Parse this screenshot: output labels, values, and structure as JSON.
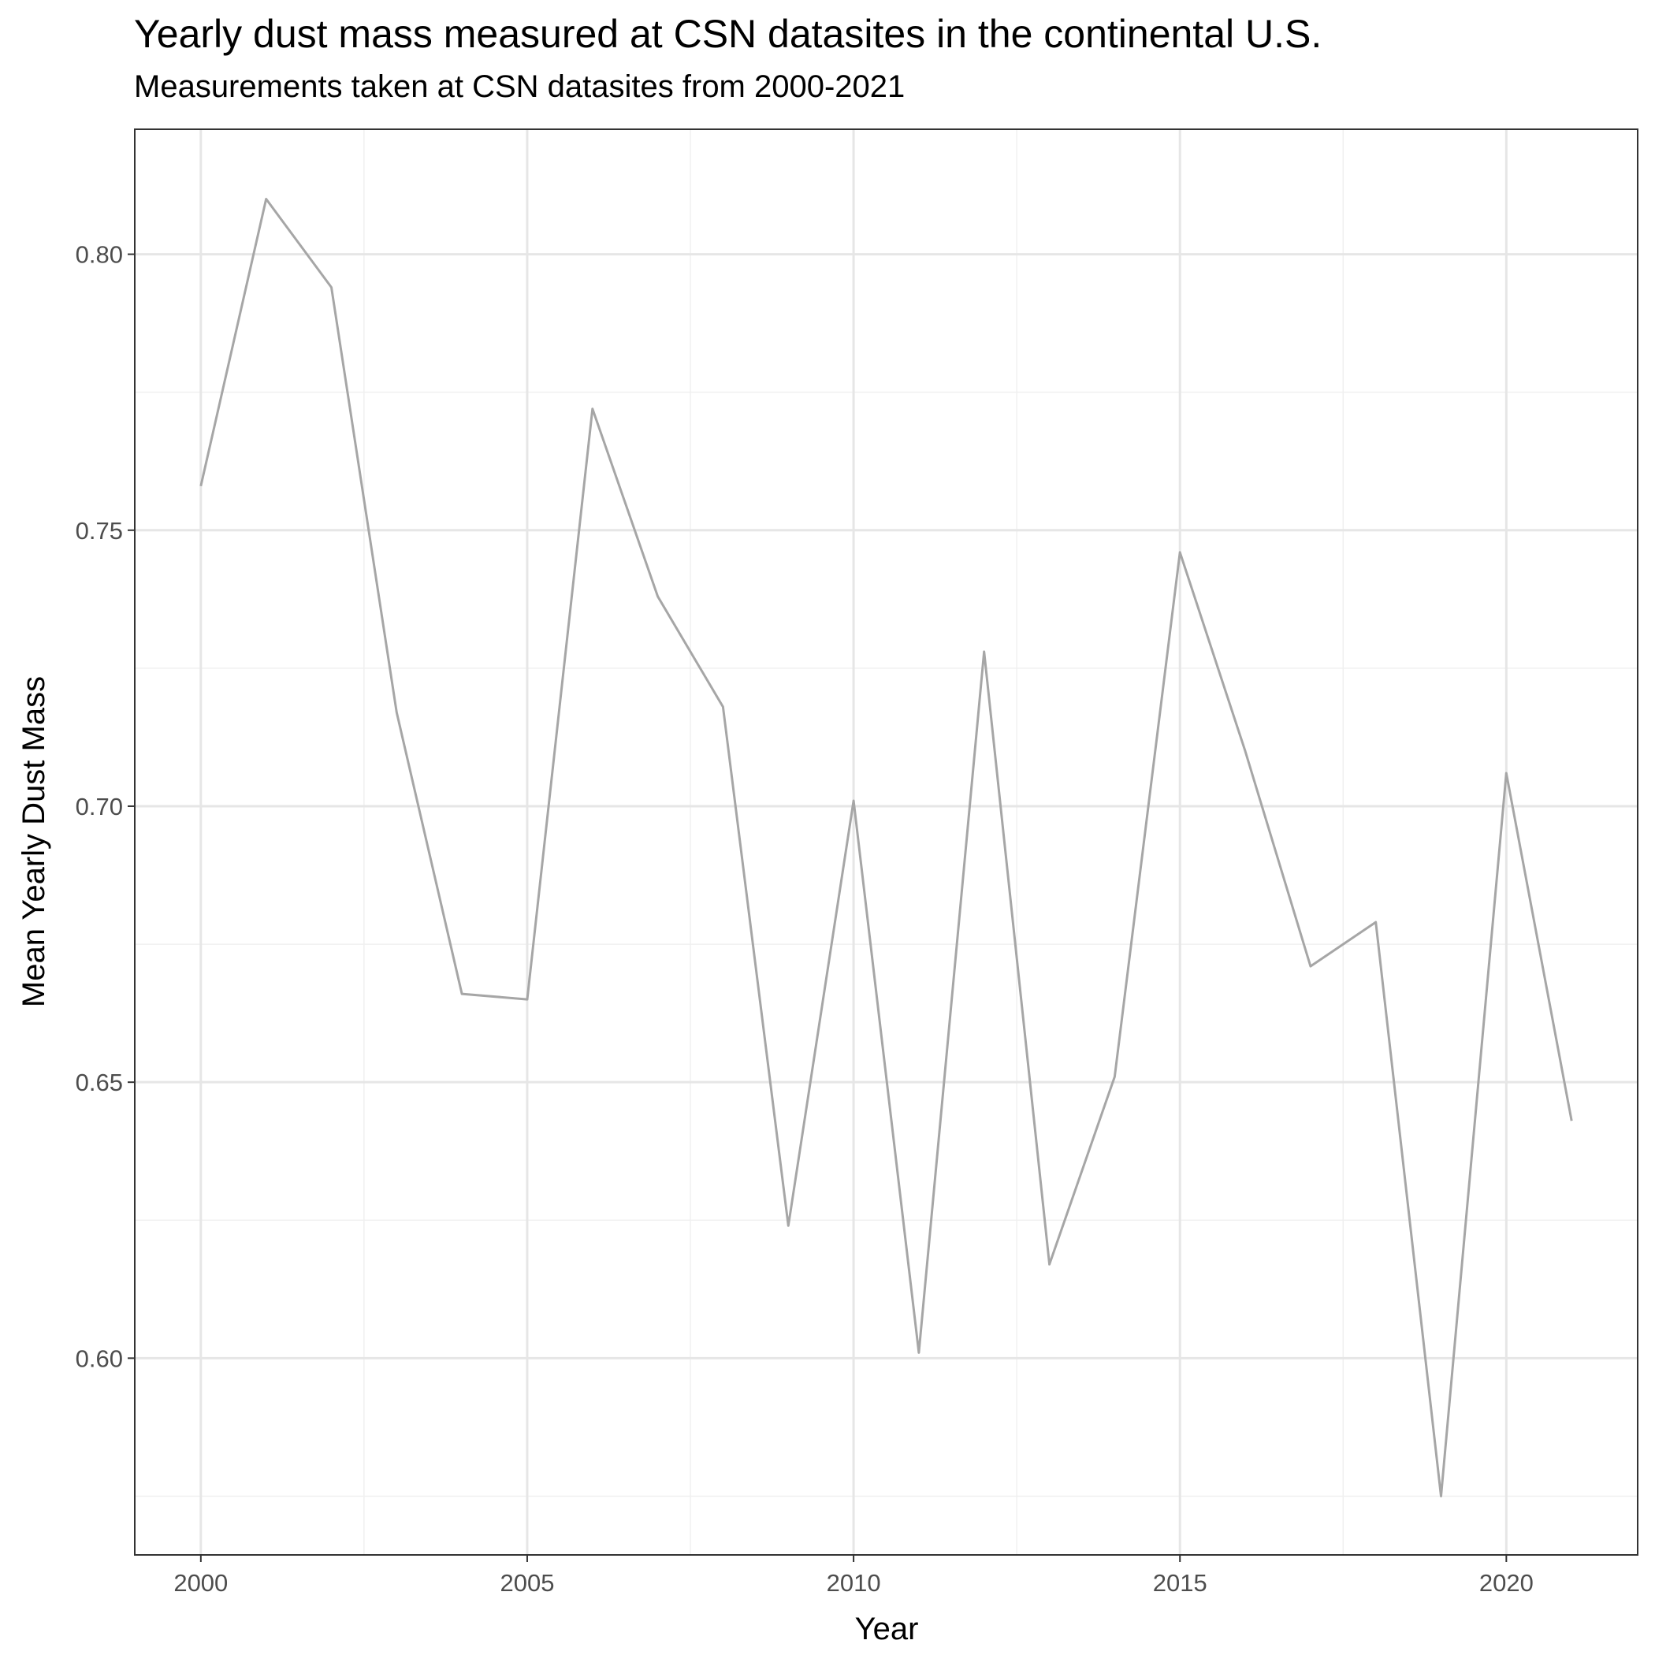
{
  "chart_data": {
    "type": "line",
    "title": "Yearly dust mass measured at CSN datasites in the continental U.S.",
    "subtitle": "Measurements taken at CSN datasites from 2000-2021",
    "xlabel": "Year",
    "ylabel": "Mean Yearly Dust Mass",
    "xlim": [
      1999,
      2022
    ],
    "ylim": [
      0.5645,
      0.8225
    ],
    "x_ticks": [
      2000,
      2005,
      2010,
      2015,
      2020
    ],
    "x_tick_labels": [
      "2000",
      "2005",
      "2010",
      "2015",
      "2020"
    ],
    "y_ticks": [
      0.6,
      0.65,
      0.7,
      0.75,
      0.8
    ],
    "y_tick_labels": [
      "0.60",
      "0.65",
      "0.70",
      "0.75",
      "0.80"
    ],
    "grid": true,
    "line_color": "#a6a6a6",
    "series": [
      {
        "x": [
          2000,
          2001,
          2002,
          2003,
          2004,
          2005,
          2006,
          2007,
          2008,
          2009,
          2010,
          2011,
          2012,
          2013,
          2014,
          2015,
          2016,
          2017,
          2018,
          2019,
          2020,
          2021
        ],
        "y": [
          0.758,
          0.81,
          0.794,
          0.717,
          0.666,
          0.665,
          0.772,
          0.738,
          0.718,
          0.624,
          0.701,
          0.601,
          0.728,
          0.617,
          0.651,
          0.746,
          0.71,
          0.671,
          0.679,
          0.575,
          0.706,
          0.643
        ]
      }
    ]
  }
}
